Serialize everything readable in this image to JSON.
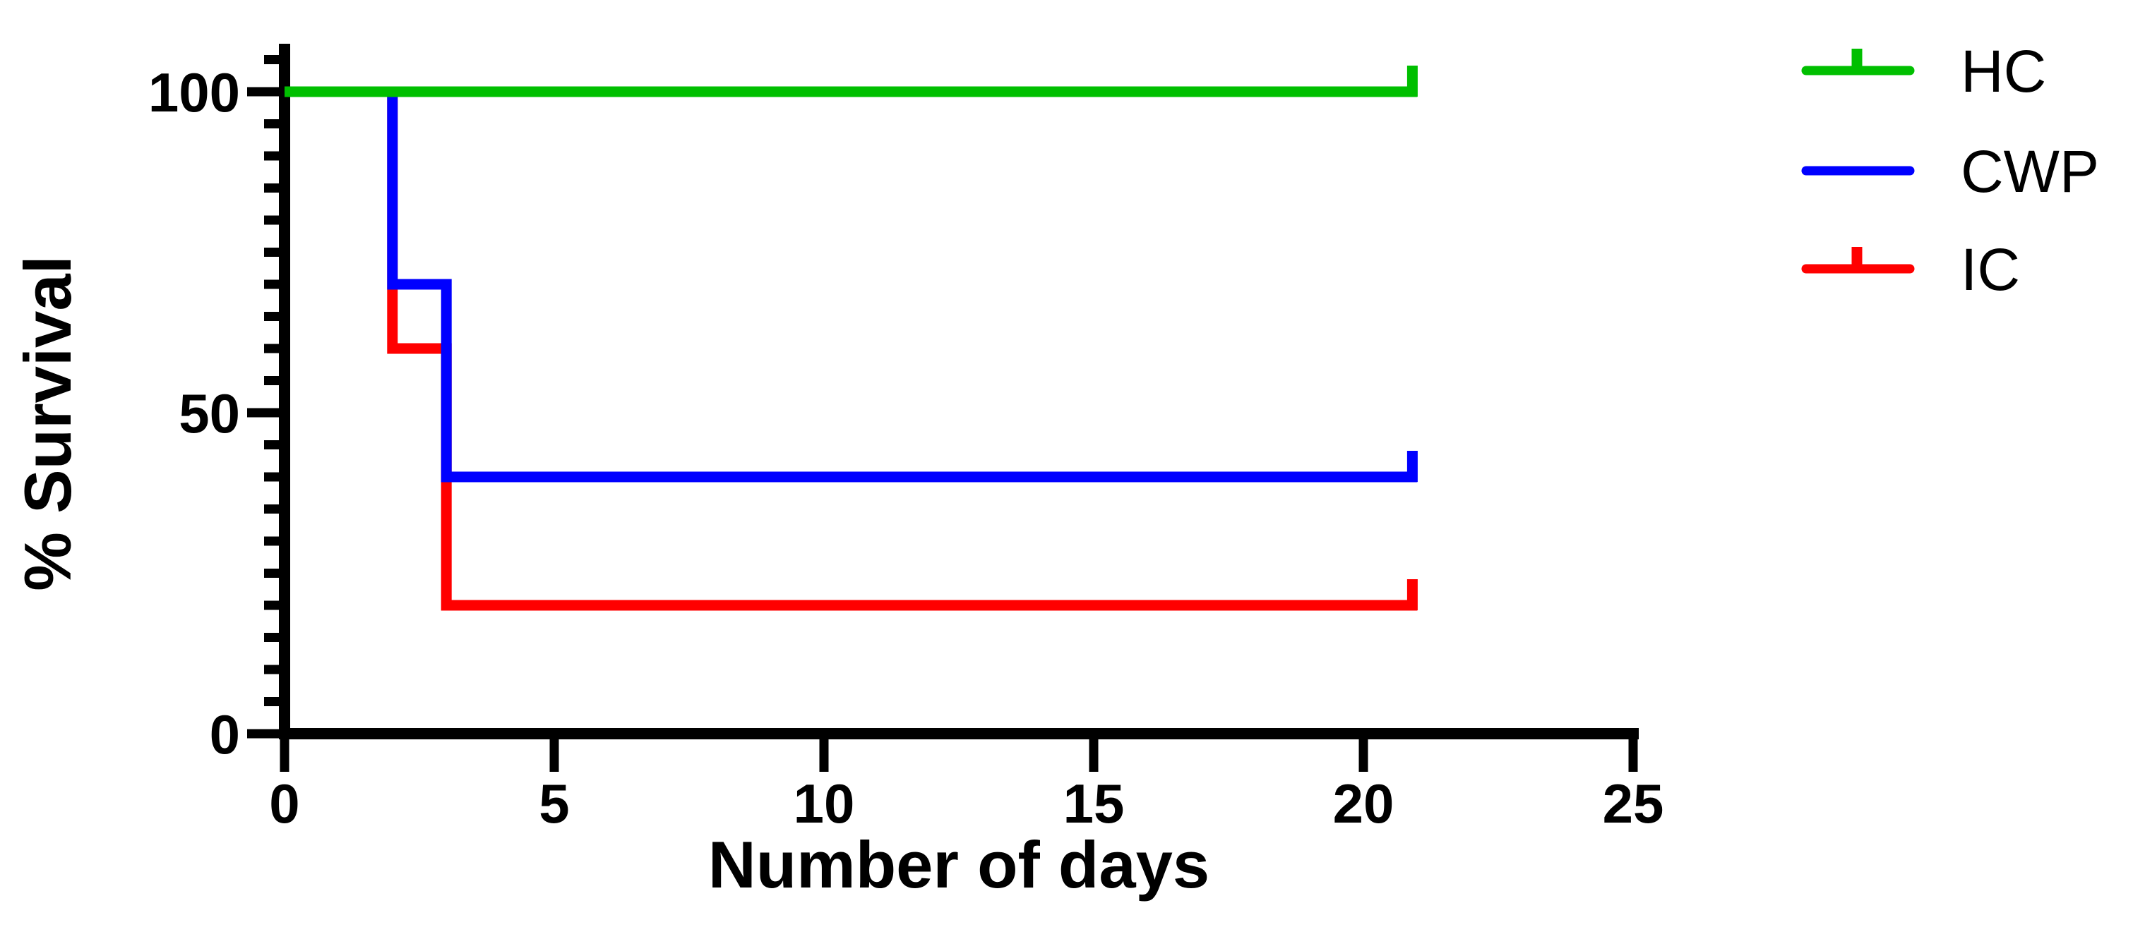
{
  "figure": {
    "background_color": "#ffffff",
    "text_color": "#000000"
  },
  "chart_data": {
    "type": "line",
    "subtype": "kaplan-meier-survival-step",
    "title": "",
    "xlabel": "Number of days",
    "ylabel": "% Survival",
    "xlim": [
      0,
      25
    ],
    "ylim": [
      0,
      100
    ],
    "grid": "off",
    "legend_position": "right-top-outside",
    "x_axis": {
      "tick_values": [
        0,
        5,
        10,
        15,
        20,
        25
      ],
      "tick_labels": [
        "0",
        "5",
        "10",
        "15",
        "20",
        "25"
      ]
    },
    "y_axis": {
      "major_tick_values": [
        0,
        50,
        100
      ],
      "major_tick_labels": [
        "0",
        "50",
        "100"
      ],
      "minor_tick_step": 5,
      "minor_tick_max": 105
    },
    "series": [
      {
        "name": "HC",
        "color": "#00BF00",
        "points": [
          [
            0,
            100
          ],
          [
            21,
            100
          ]
        ],
        "censor_marks": [
          [
            21,
            100
          ]
        ]
      },
      {
        "name": "CWP",
        "color": "#0000FF",
        "points": [
          [
            0,
            100
          ],
          [
            2,
            100
          ],
          [
            2,
            70
          ],
          [
            3,
            70
          ],
          [
            3,
            40
          ],
          [
            21,
            40
          ]
        ],
        "censor_marks": [
          [
            21,
            40
          ]
        ]
      },
      {
        "name": "IC",
        "color": "#FF0000",
        "points": [
          [
            0,
            100
          ],
          [
            2,
            100
          ],
          [
            2,
            60
          ],
          [
            3,
            60
          ],
          [
            3,
            20
          ],
          [
            21,
            20
          ]
        ],
        "censor_marks": [
          [
            21,
            20
          ]
        ]
      }
    ],
    "legend": [
      {
        "label": "HC",
        "color": "#00BF00",
        "censor_marker": true
      },
      {
        "label": "CWP",
        "color": "#0000FF",
        "censor_marker": false
      },
      {
        "label": "IC",
        "color": "#FF0000",
        "censor_marker": true
      }
    ]
  }
}
